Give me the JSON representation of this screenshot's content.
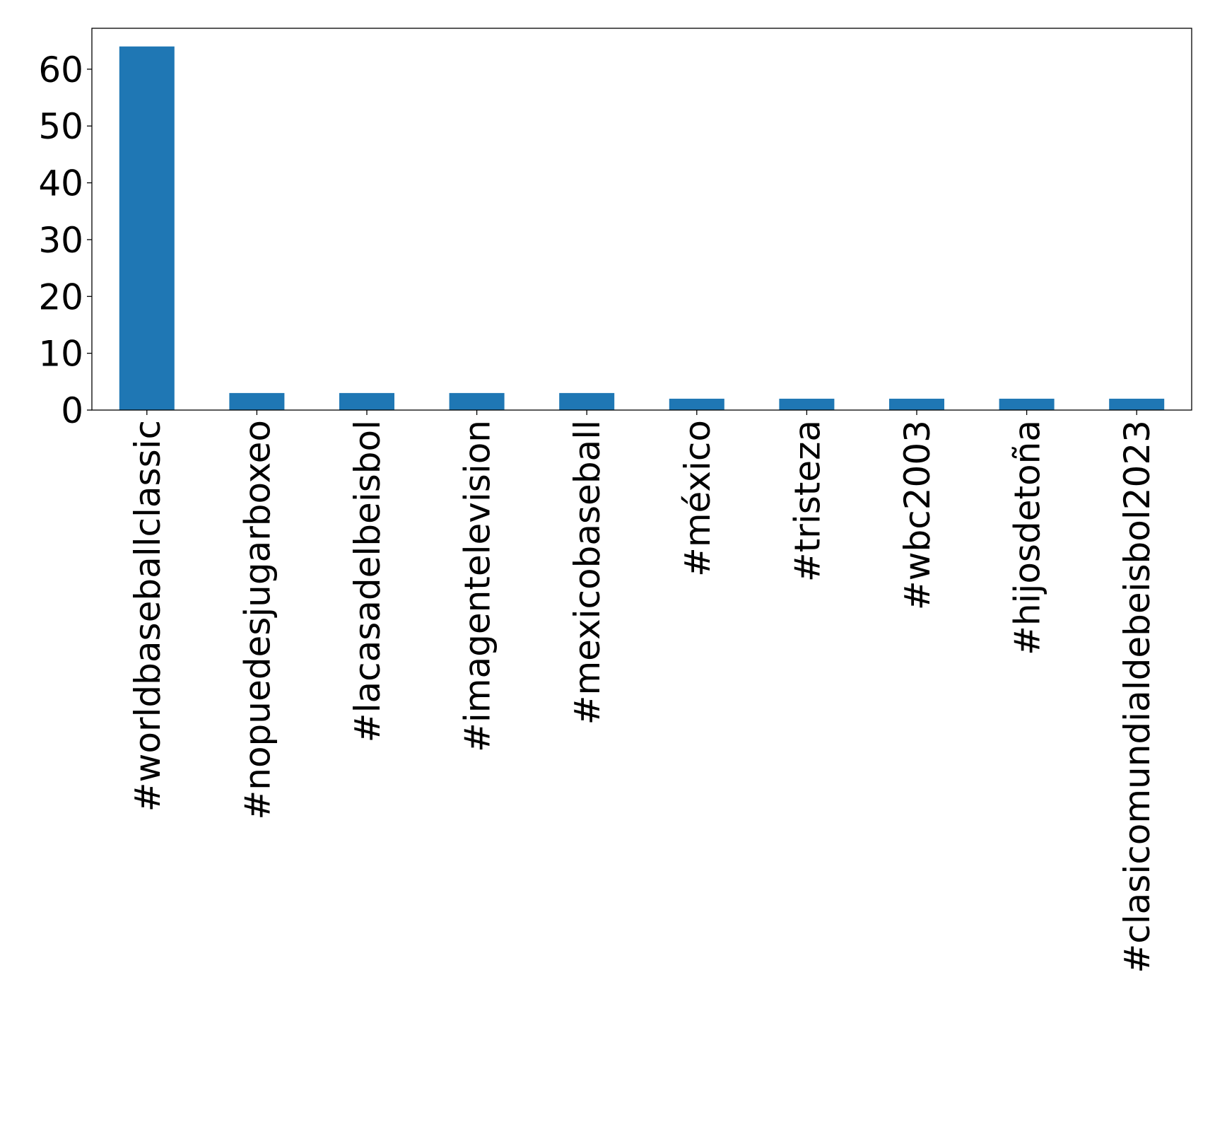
{
  "colors": {
    "bar": "#1f77b4",
    "axis": "#000000",
    "background": "#ffffff"
  },
  "chart_data": {
    "type": "bar",
    "categories": [
      "#worldbaseballclassic",
      "#nopuedesjugarboxeo",
      "#lacasadelbeisbol",
      "#imagentelevision",
      "#mexicobaseball",
      "#méxico",
      "#tristeza",
      "#wbc2003",
      "#hijosdetoña",
      "#clasicomundialdebeisbol2023"
    ],
    "values": [
      64,
      3,
      3,
      3,
      3,
      2,
      2,
      2,
      2,
      2
    ],
    "yticks": [
      0,
      10,
      20,
      30,
      40,
      50,
      60
    ],
    "ylim": [
      0,
      67.2
    ],
    "title": "",
    "xlabel": "",
    "ylabel": "",
    "grid": false,
    "legend": "none"
  }
}
